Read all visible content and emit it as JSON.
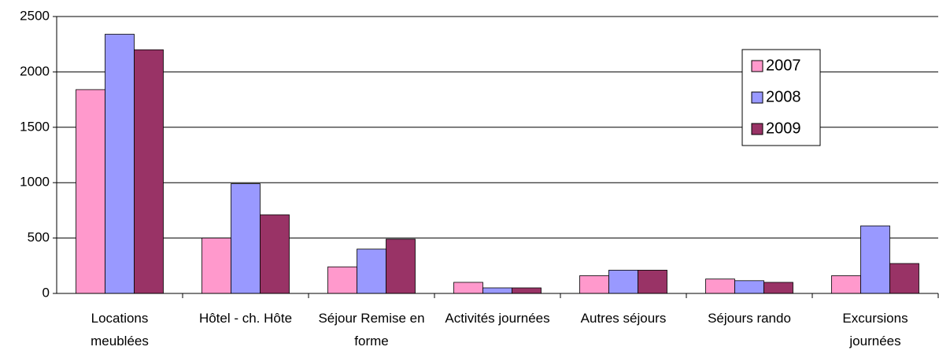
{
  "chart_data": {
    "type": "bar",
    "categories": [
      "Locations meublées",
      "Hôtel - ch. Hôte",
      "Séjour Remise en forme",
      "Activités journées",
      "Autres séjours",
      "Séjours rando",
      "Excursions journées"
    ],
    "series": [
      {
        "name": "2007",
        "color": "#ff99cc",
        "values": [
          1840,
          500,
          240,
          100,
          160,
          130,
          160
        ]
      },
      {
        "name": "2008",
        "color": "#9999ff",
        "values": [
          2340,
          990,
          400,
          50,
          210,
          115,
          610
        ]
      },
      {
        "name": "2009",
        "color": "#993366",
        "values": [
          2200,
          710,
          490,
          50,
          210,
          100,
          270
        ]
      }
    ],
    "ylim": [
      0,
      2500
    ],
    "yticks": [
      0,
      500,
      1000,
      1500,
      2000,
      2500
    ],
    "grid": true,
    "legend": "right"
  }
}
